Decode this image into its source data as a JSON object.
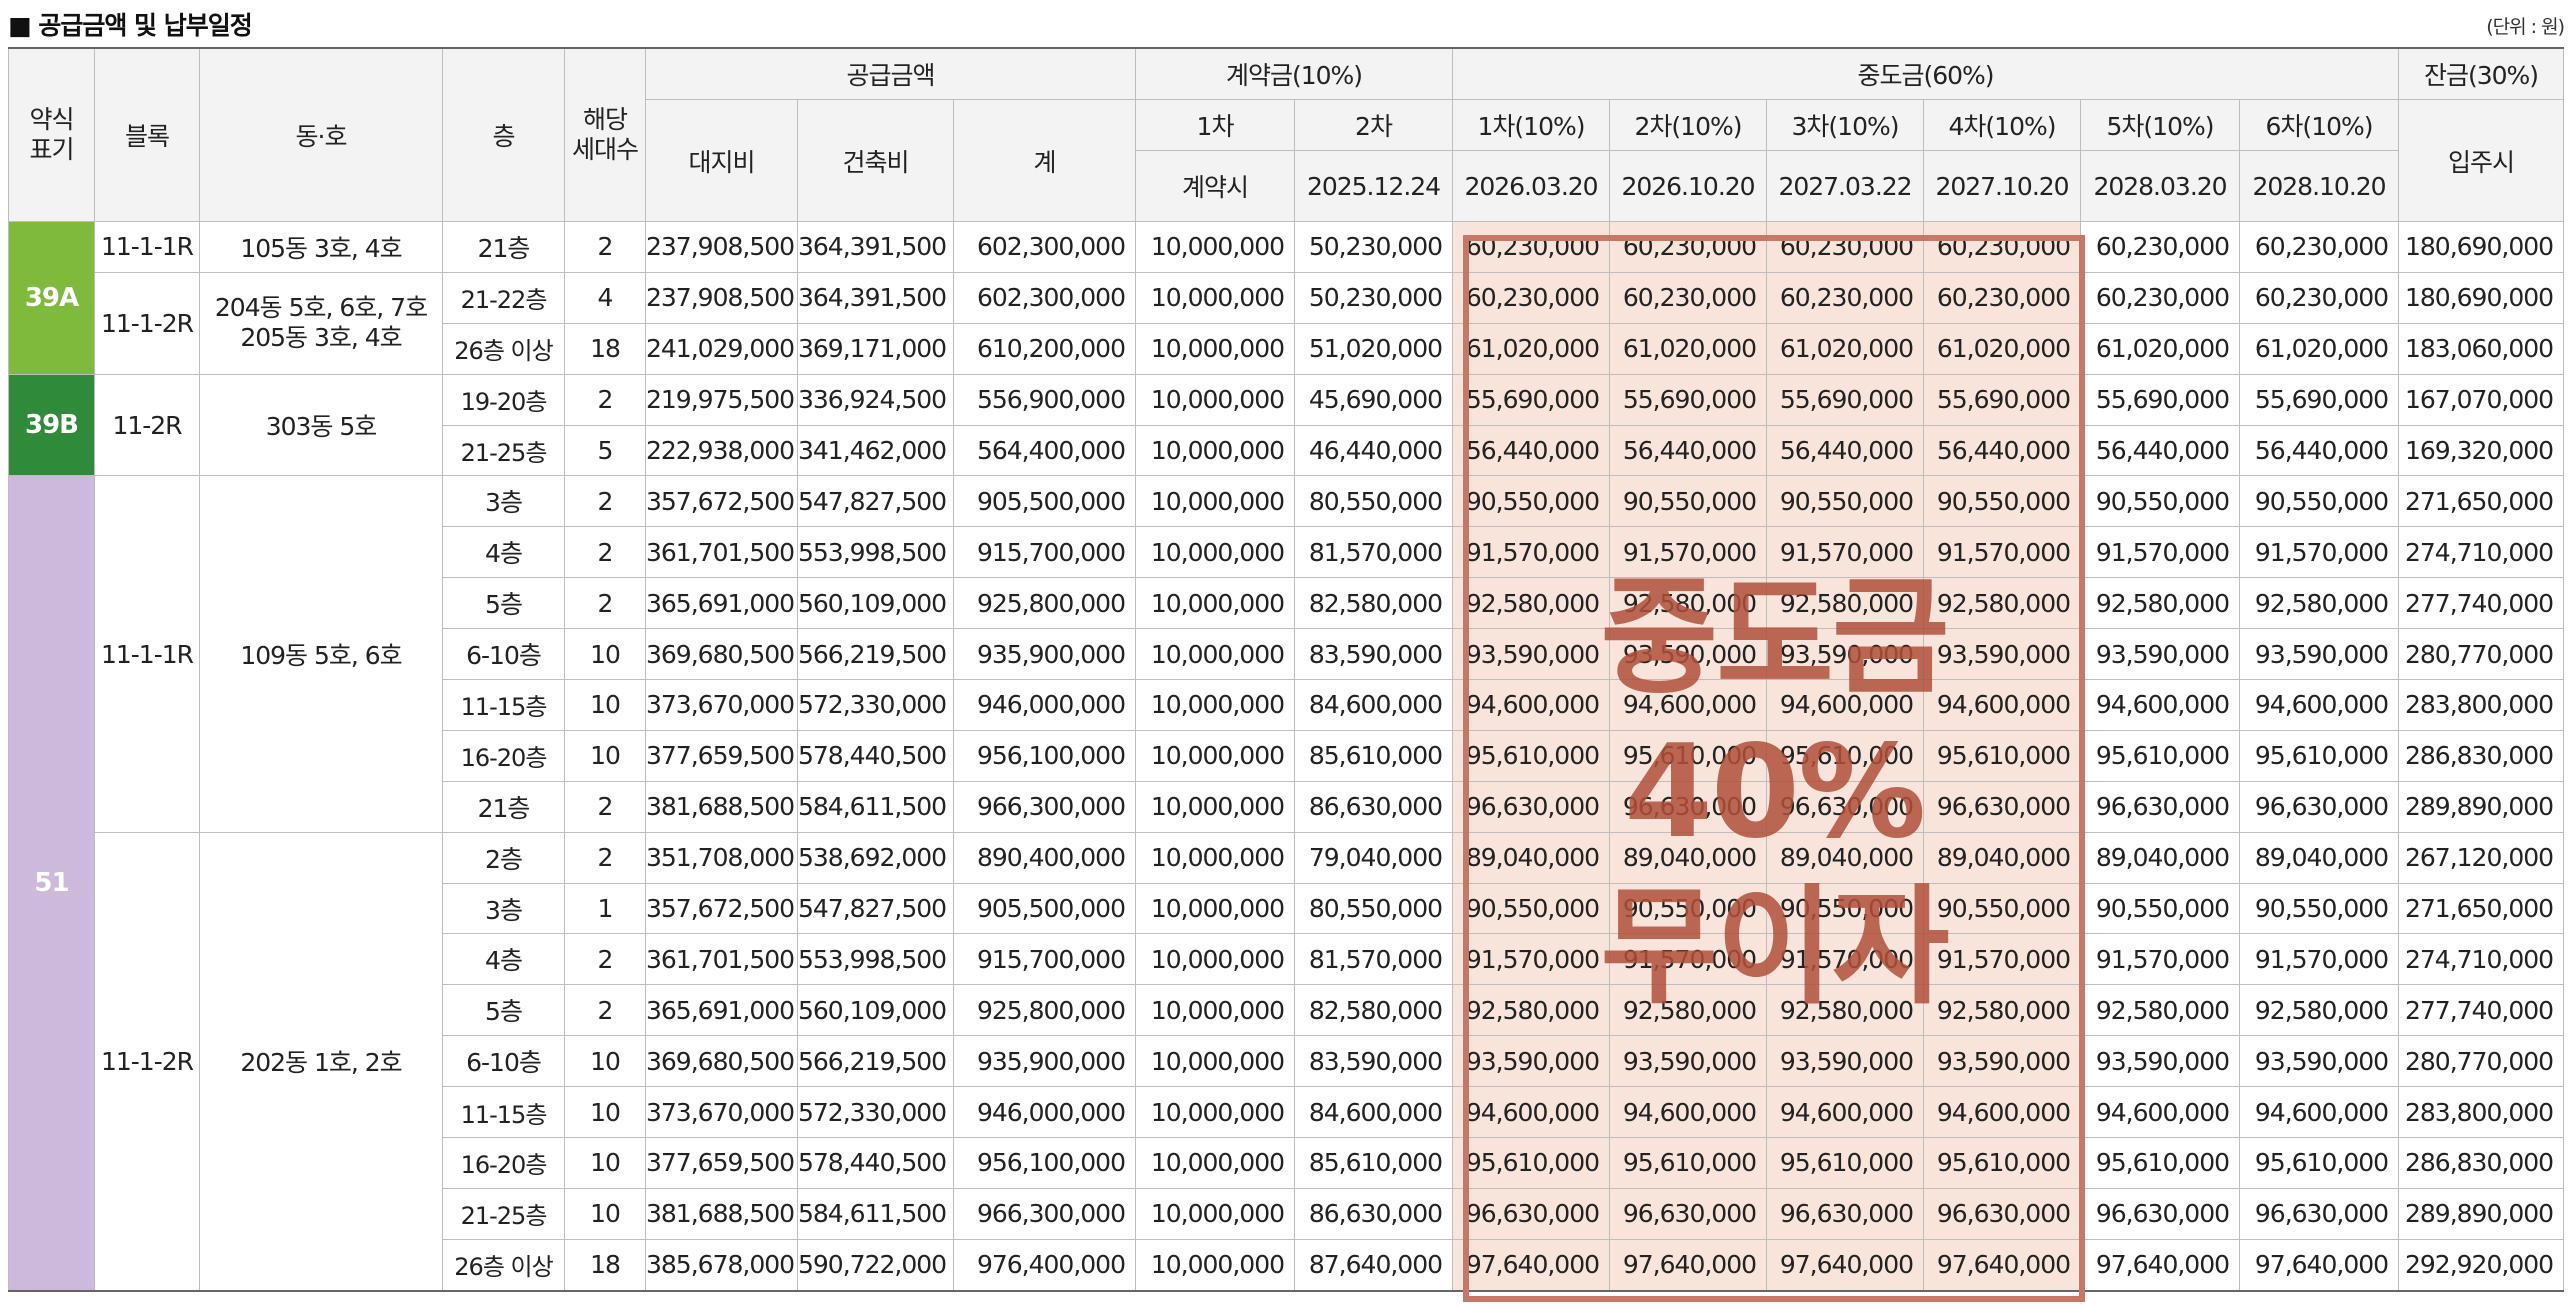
{
  "title": "■ 공급금액 및 납부일정",
  "unit": "(단위 : 원)",
  "colors": {
    "type_39a": "#7fba3c",
    "type_39b": "#2f8b3a",
    "type_51": "#cdb9dc",
    "highlight_border": "#c47865",
    "highlight_fill": "#f8e4da"
  },
  "header": {
    "type": "약식\n표기",
    "block": "블록",
    "dongho": "동·호",
    "floor": "층",
    "units": "해당\n세대수",
    "supply": "공급금액",
    "land": "대지비",
    "build": "건축비",
    "total": "계",
    "deposit": "계약금(10%)",
    "dep1": "1차",
    "dep2": "2차",
    "dep1_when": "계약시",
    "dep2_date": "2025.12.24",
    "mid": "중도금(60%)",
    "mid1": "1차(10%)",
    "mid2": "2차(10%)",
    "mid3": "3차(10%)",
    "mid4": "4차(10%)",
    "mid5": "5차(10%)",
    "mid6": "6차(10%)",
    "mid1_date": "2026.03.20",
    "mid2_date": "2026.10.20",
    "mid3_date": "2027.03.22",
    "mid4_date": "2027.10.20",
    "mid5_date": "2028.03.20",
    "mid6_date": "2028.10.20",
    "balance": "잔금(30%)",
    "balance_when": "입주시"
  },
  "groups": {
    "g39a": {
      "type": "39A",
      "block_a": "11-1-1R",
      "dongho_a": "105동 3호, 4호",
      "block_b": "11-1-2R",
      "dongho_b": "204동 5호, 6호, 7호\n205동 3호, 4호"
    },
    "g39b": {
      "type": "39B",
      "block": "11-2R",
      "dongho": "303동 5호"
    },
    "g51": {
      "type": "51",
      "block_a": "11-1-1R",
      "dongho_a": "109동 5호, 6호",
      "block_b": "11-1-2R",
      "dongho_b": "202동 1호, 2호"
    }
  },
  "rows": [
    {
      "floor": "21층",
      "units": "2",
      "land": "237,908,500",
      "build": "364,391,500",
      "total": "602,300,000",
      "dep1": "10,000,000",
      "dep2": "50,230,000",
      "mid": "60,230,000",
      "balance": "180,690,000"
    },
    {
      "floor": "21-22층",
      "units": "4",
      "land": "237,908,500",
      "build": "364,391,500",
      "total": "602,300,000",
      "dep1": "10,000,000",
      "dep2": "50,230,000",
      "mid": "60,230,000",
      "balance": "180,690,000"
    },
    {
      "floor": "26층 이상",
      "units": "18",
      "land": "241,029,000",
      "build": "369,171,000",
      "total": "610,200,000",
      "dep1": "10,000,000",
      "dep2": "51,020,000",
      "mid": "61,020,000",
      "balance": "183,060,000"
    },
    {
      "floor": "19-20층",
      "units": "2",
      "land": "219,975,500",
      "build": "336,924,500",
      "total": "556,900,000",
      "dep1": "10,000,000",
      "dep2": "45,690,000",
      "mid": "55,690,000",
      "balance": "167,070,000"
    },
    {
      "floor": "21-25층",
      "units": "5",
      "land": "222,938,000",
      "build": "341,462,000",
      "total": "564,400,000",
      "dep1": "10,000,000",
      "dep2": "46,440,000",
      "mid": "56,440,000",
      "balance": "169,320,000"
    },
    {
      "floor": "3층",
      "units": "2",
      "land": "357,672,500",
      "build": "547,827,500",
      "total": "905,500,000",
      "dep1": "10,000,000",
      "dep2": "80,550,000",
      "mid": "90,550,000",
      "balance": "271,650,000"
    },
    {
      "floor": "4층",
      "units": "2",
      "land": "361,701,500",
      "build": "553,998,500",
      "total": "915,700,000",
      "dep1": "10,000,000",
      "dep2": "81,570,000",
      "mid": "91,570,000",
      "balance": "274,710,000"
    },
    {
      "floor": "5층",
      "units": "2",
      "land": "365,691,000",
      "build": "560,109,000",
      "total": "925,800,000",
      "dep1": "10,000,000",
      "dep2": "82,580,000",
      "mid": "92,580,000",
      "balance": "277,740,000"
    },
    {
      "floor": "6-10층",
      "units": "10",
      "land": "369,680,500",
      "build": "566,219,500",
      "total": "935,900,000",
      "dep1": "10,000,000",
      "dep2": "83,590,000",
      "mid": "93,590,000",
      "balance": "280,770,000"
    },
    {
      "floor": "11-15층",
      "units": "10",
      "land": "373,670,000",
      "build": "572,330,000",
      "total": "946,000,000",
      "dep1": "10,000,000",
      "dep2": "84,600,000",
      "mid": "94,600,000",
      "balance": "283,800,000"
    },
    {
      "floor": "16-20층",
      "units": "10",
      "land": "377,659,500",
      "build": "578,440,500",
      "total": "956,100,000",
      "dep1": "10,000,000",
      "dep2": "85,610,000",
      "mid": "95,610,000",
      "balance": "286,830,000"
    },
    {
      "floor": "21층",
      "units": "2",
      "land": "381,688,500",
      "build": "584,611,500",
      "total": "966,300,000",
      "dep1": "10,000,000",
      "dep2": "86,630,000",
      "mid": "96,630,000",
      "balance": "289,890,000"
    },
    {
      "floor": "2층",
      "units": "2",
      "land": "351,708,000",
      "build": "538,692,000",
      "total": "890,400,000",
      "dep1": "10,000,000",
      "dep2": "79,040,000",
      "mid": "89,040,000",
      "balance": "267,120,000"
    },
    {
      "floor": "3층",
      "units": "1",
      "land": "357,672,500",
      "build": "547,827,500",
      "total": "905,500,000",
      "dep1": "10,000,000",
      "dep2": "80,550,000",
      "mid": "90,550,000",
      "balance": "271,650,000"
    },
    {
      "floor": "4층",
      "units": "2",
      "land": "361,701,500",
      "build": "553,998,500",
      "total": "915,700,000",
      "dep1": "10,000,000",
      "dep2": "81,570,000",
      "mid": "91,570,000",
      "balance": "274,710,000"
    },
    {
      "floor": "5층",
      "units": "2",
      "land": "365,691,000",
      "build": "560,109,000",
      "total": "925,800,000",
      "dep1": "10,000,000",
      "dep2": "82,580,000",
      "mid": "92,580,000",
      "balance": "277,740,000"
    },
    {
      "floor": "6-10층",
      "units": "10",
      "land": "369,680,500",
      "build": "566,219,500",
      "total": "935,900,000",
      "dep1": "10,000,000",
      "dep2": "83,590,000",
      "mid": "93,590,000",
      "balance": "280,770,000"
    },
    {
      "floor": "11-15층",
      "units": "10",
      "land": "373,670,000",
      "build": "572,330,000",
      "total": "946,000,000",
      "dep1": "10,000,000",
      "dep2": "84,600,000",
      "mid": "94,600,000",
      "balance": "283,800,000"
    },
    {
      "floor": "16-20층",
      "units": "10",
      "land": "377,659,500",
      "build": "578,440,500",
      "total": "956,100,000",
      "dep1": "10,000,000",
      "dep2": "85,610,000",
      "mid": "95,610,000",
      "balance": "286,830,000"
    },
    {
      "floor": "21-25층",
      "units": "10",
      "land": "381,688,500",
      "build": "584,611,500",
      "total": "966,300,000",
      "dep1": "10,000,000",
      "dep2": "86,630,000",
      "mid": "96,630,000",
      "balance": "289,890,000"
    },
    {
      "floor": "26층 이상",
      "units": "18",
      "land": "385,678,000",
      "build": "590,722,000",
      "total": "976,400,000",
      "dep1": "10,000,000",
      "dep2": "87,640,000",
      "mid": "97,640,000",
      "balance": "292,920,000"
    }
  ],
  "overlay_lines": [
    "중도금",
    "40%",
    "무이자"
  ]
}
